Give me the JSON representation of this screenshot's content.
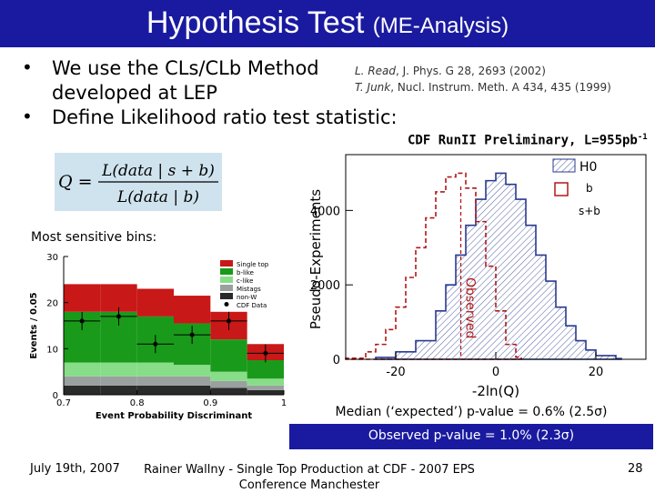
{
  "title": {
    "main": "Hypothesis Test",
    "sub": "(ME-Analysis)"
  },
  "bullets": [
    {
      "marker": "•",
      "lines": [
        "We use the CLs/CLb Method",
        "developed at LEP"
      ]
    },
    {
      "marker": "•",
      "lines": [
        "Define Likelihood ratio test statistic:"
      ]
    }
  ],
  "references": [
    {
      "author": "L. Read",
      "rest": ", J. Phys. G 28, 2693 (2002)"
    },
    {
      "author": "T. Junk",
      "rest": ", Nucl. Instrum. Meth. A 434, 435 (1999)"
    }
  ],
  "formula": {
    "lhs": "Q =",
    "numerator": "L(data | s + b)",
    "denominator": "L(data | b)"
  },
  "cdf_label": {
    "text": "CDF RunII Preliminary, L=955pb",
    "sup": "-1"
  },
  "most_sensitive": "Most sensitive bins:",
  "median_text": "Median (‘expected’) p-value = 0.6%  (2.5σ)",
  "observed_text": "Observed p-value = 1.0%  (2.3σ)",
  "footer": {
    "date": "July  19th, 2007",
    "center_line1": "Rainer Wallny - Single Top Production at CDF  - 2007 EPS",
    "center_line2": "Conference Manchester",
    "page": "28"
  },
  "colors": {
    "title_bg": "#1a1aa0",
    "formula_bg": "#cfe3ee",
    "signal": "#d42020",
    "green_dark": "#1a9a1a",
    "green_light": "#66cc66"
  },
  "chart_data": [
    {
      "type": "area",
      "title": "",
      "xlabel": "-2ln(Q)",
      "ylabel": "Pseudo-Experiments",
      "xlim": [
        -30,
        30
      ],
      "ylim": [
        0,
        5500
      ],
      "x_ticks": [
        "-20",
        "0",
        "20"
      ],
      "y_ticks": [
        "0",
        "2000",
        "4000"
      ],
      "legend": {
        "title": "H0",
        "entries": [
          "b",
          "s+b"
        ],
        "placement": "top-right"
      },
      "observed_label": "Observed",
      "observed_x": -7,
      "series": [
        {
          "name": "b",
          "x": [
            -24,
            -20,
            -16,
            -12,
            -10,
            -8,
            -6,
            -4,
            -2,
            0,
            2,
            4,
            6,
            8,
            10,
            12,
            14,
            16,
            18,
            20,
            24
          ],
          "values": [
            50,
            200,
            500,
            1300,
            2000,
            2800,
            3600,
            4300,
            4800,
            5000,
            4700,
            4300,
            3600,
            2800,
            2100,
            1400,
            900,
            500,
            250,
            100,
            20
          ]
        },
        {
          "name": "s+b",
          "x": [
            -30,
            -26,
            -24,
            -22,
            -20,
            -18,
            -16,
            -14,
            -12,
            -10,
            -8,
            -6,
            -4,
            -2,
            0,
            2,
            4
          ],
          "values": [
            30,
            200,
            400,
            800,
            1400,
            2200,
            3000,
            3800,
            4500,
            4900,
            5000,
            4600,
            3700,
            2500,
            1300,
            400,
            60
          ]
        }
      ]
    },
    {
      "type": "bar",
      "title": "",
      "xlabel": "Event Probability Discriminant",
      "ylabel": "Events / 0.05",
      "xlim": [
        0.7,
        1.0
      ],
      "ylim": [
        0,
        30
      ],
      "x_ticks": [
        "0.7",
        "0.8",
        "0.9",
        "1"
      ],
      "y_ticks": [
        "0",
        "10",
        "20",
        "30"
      ],
      "categories": [
        "0.70-0.75",
        "0.75-0.80",
        "0.80-0.85",
        "0.85-0.90",
        "0.90-0.95",
        "0.95-1.00"
      ],
      "legend_entries": [
        "Single top",
        "b-like",
        "c-like",
        "Mistags",
        "non-W",
        "CDF Data"
      ],
      "series": [
        {
          "name": "non-W",
          "values": [
            2,
            2,
            2,
            2,
            1.5,
            1
          ]
        },
        {
          "name": "Mistags",
          "values": [
            2,
            2,
            2,
            2,
            1.5,
            1
          ]
        },
        {
          "name": "c-like",
          "values": [
            3,
            3,
            3,
            2.5,
            2,
            1.5
          ]
        },
        {
          "name": "b-like",
          "values": [
            11,
            11,
            10,
            9,
            7,
            4
          ]
        },
        {
          "name": "Single top",
          "values": [
            6,
            6,
            6,
            6,
            6,
            3.5
          ]
        },
        {
          "name": "CDF Data",
          "values": [
            16,
            17,
            11,
            13,
            16,
            9
          ]
        }
      ]
    }
  ]
}
